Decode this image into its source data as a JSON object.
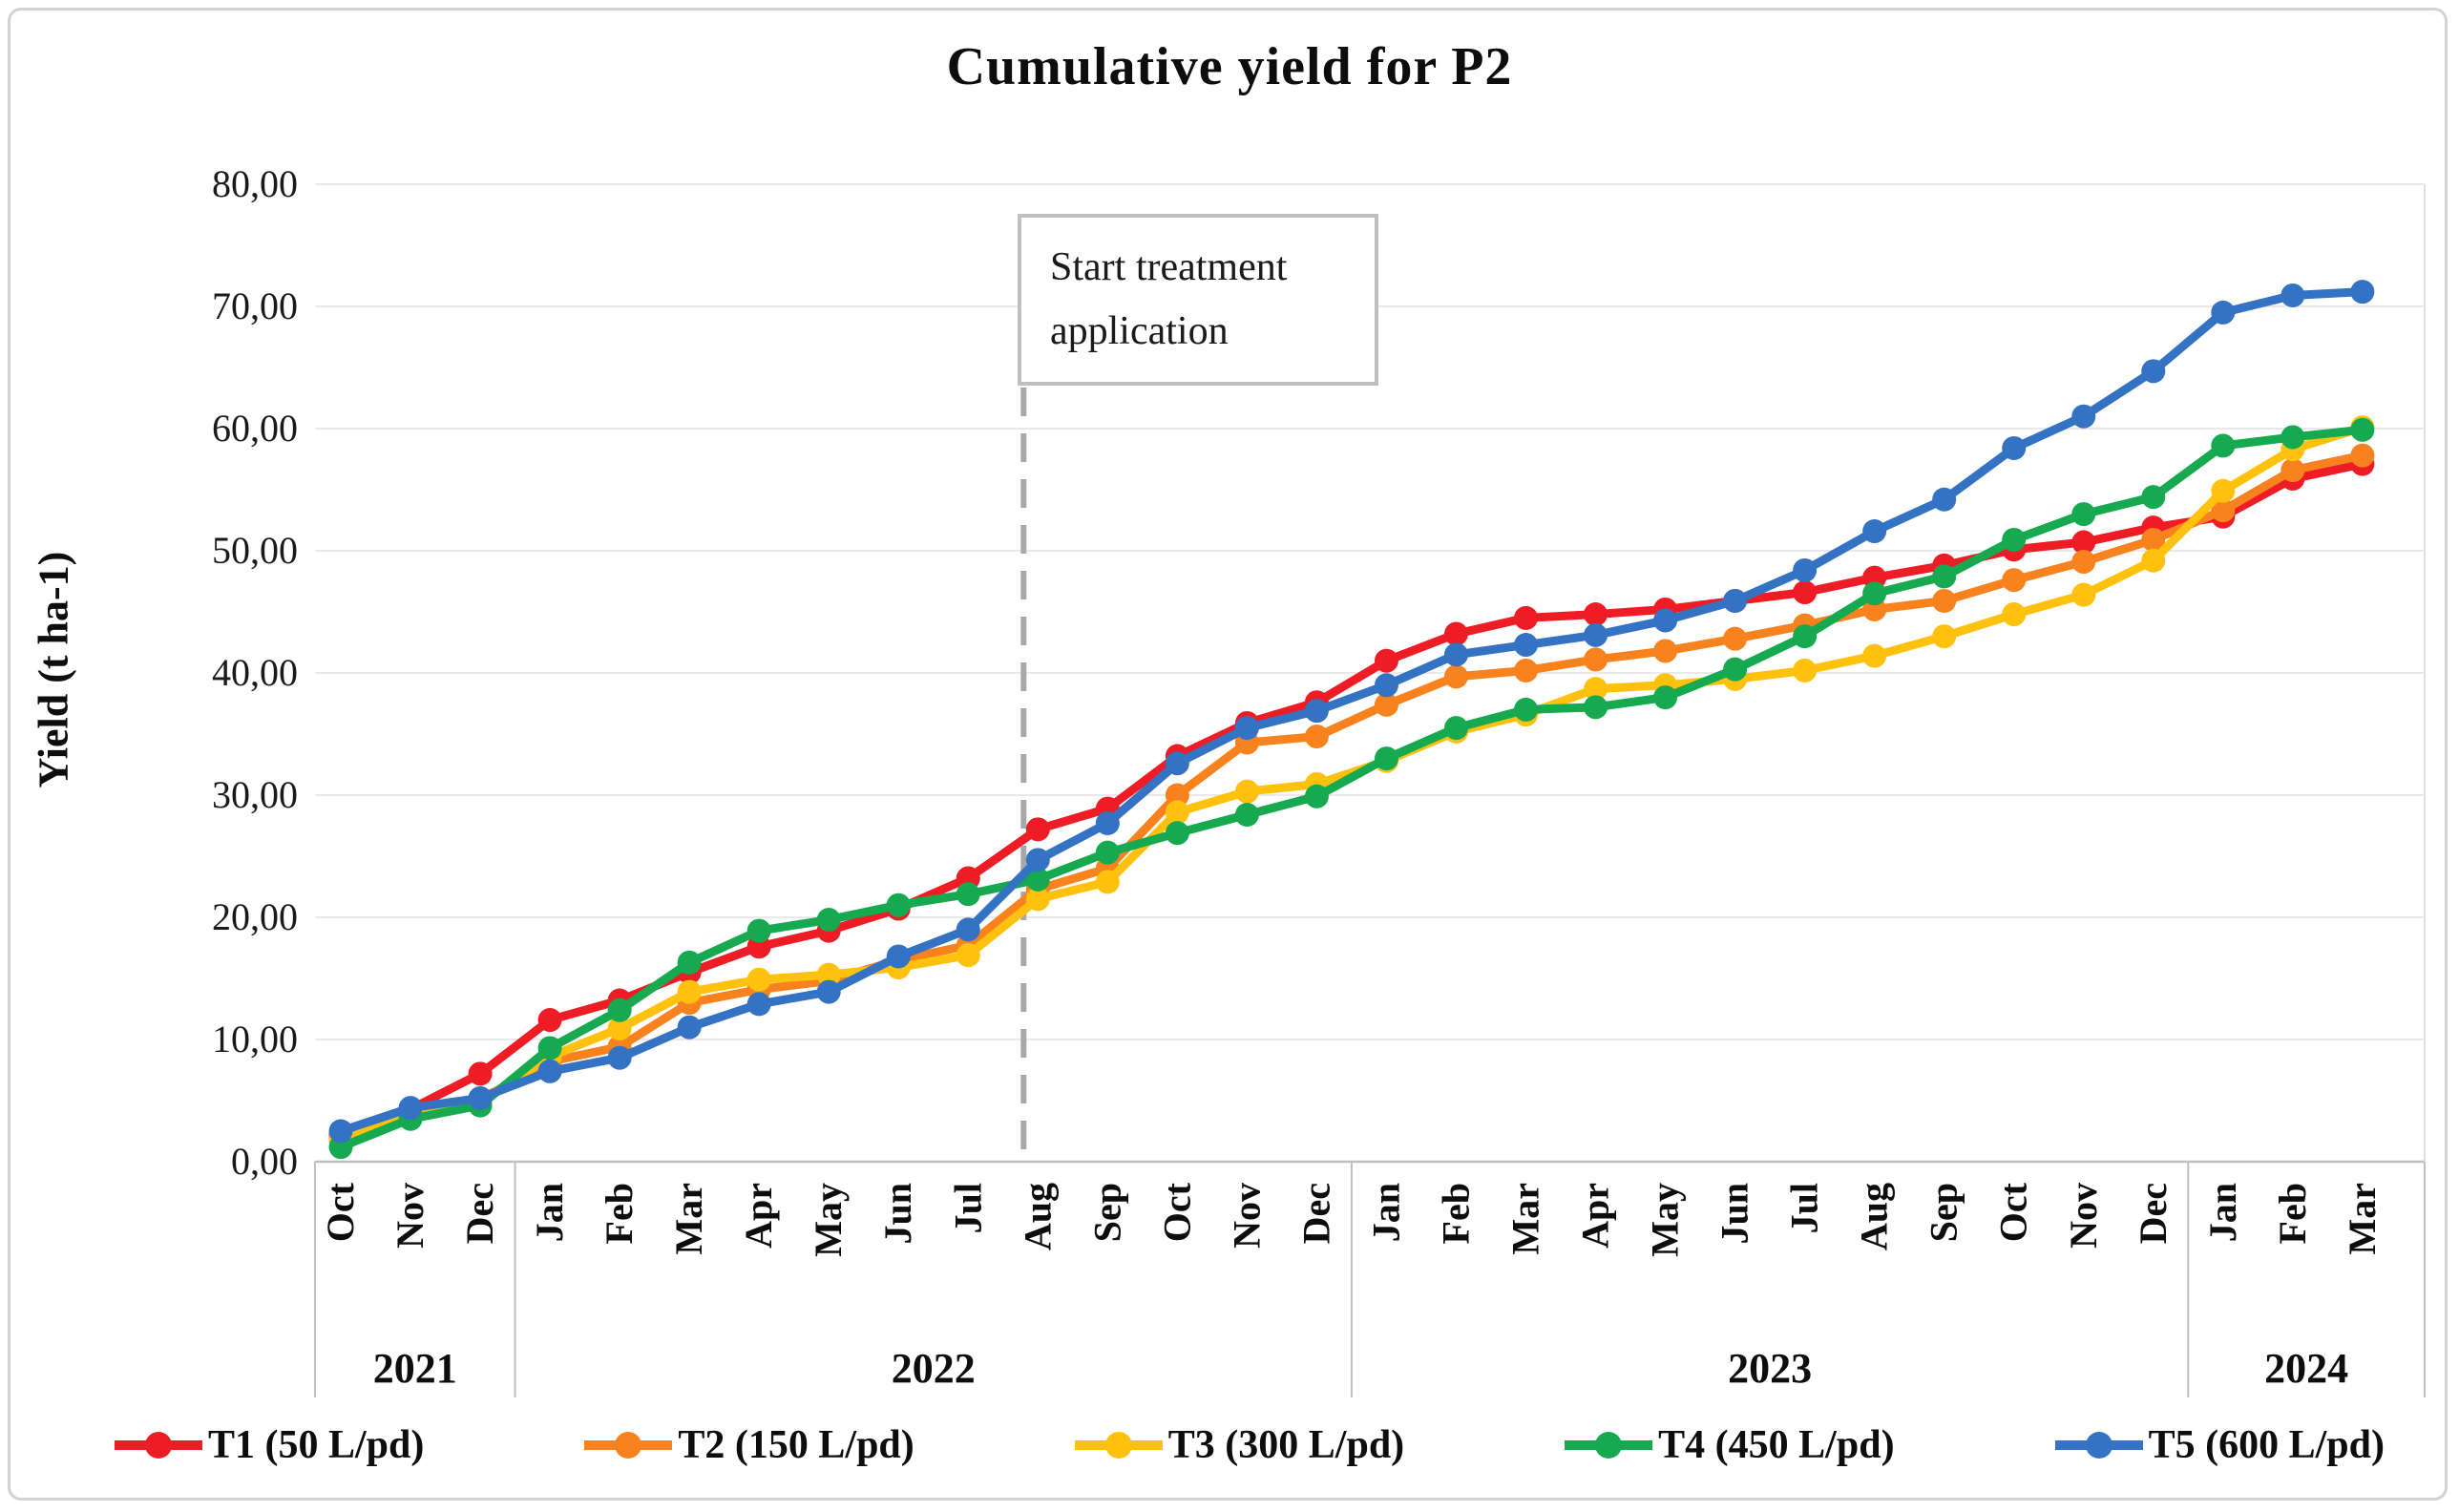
{
  "figure": {
    "title": "Cumulative yield for P2",
    "y_axis_title": "Yield (t ha-1)",
    "annotation": {
      "line1": "Start treatment",
      "line2": "application"
    }
  },
  "chart_data": {
    "type": "line",
    "title": "Cumulative yield for P2",
    "xlabel": "",
    "ylabel": "Yield (t ha-1)",
    "ylim": [
      0,
      80
    ],
    "y_tick_labels": [
      "0,00",
      "10,00",
      "20,00",
      "30,00",
      "40,00",
      "50,00",
      "60,00",
      "70,00",
      "80,00"
    ],
    "grid": true,
    "legend_position": "bottom",
    "months": [
      "Oct",
      "Nov",
      "Dec",
      "Jan",
      "Feb",
      "Mar",
      "Apr",
      "May",
      "Jun",
      "Jul",
      "Aug",
      "Sep",
      "Oct",
      "Nov",
      "Dec",
      "Jan",
      "Feb",
      "Mar",
      "Apr",
      "May",
      "Jun",
      "Jul",
      "Aug",
      "Sep",
      "Oct",
      "Nov",
      "Dec",
      "Jan",
      "Feb",
      "Mar"
    ],
    "year_groups": [
      {
        "label": "2021",
        "span": 3
      },
      {
        "label": "2022",
        "span": 12
      },
      {
        "label": "2023",
        "span": 12
      },
      {
        "label": "2024",
        "span": 3
      }
    ],
    "annotation": {
      "text": "Start treatment application",
      "at_month_index": 10
    },
    "treatment_line": {
      "month_index": 10,
      "color": "#a8a8a8",
      "style": "dashed"
    },
    "series": [
      {
        "name": "T1 (50 L/pd)",
        "color": "#ee1c25",
        "values": [
          2.2,
          4.3,
          7.2,
          11.6,
          13.2,
          15.5,
          17.6,
          18.9,
          20.7,
          23.2,
          27.2,
          28.9,
          33.2,
          35.9,
          37.6,
          41.0,
          43.2,
          44.5,
          44.8,
          45.2,
          45.9,
          46.6,
          47.8,
          48.8,
          50.1,
          50.7,
          51.9,
          52.8,
          55.9,
          57.1
        ]
      },
      {
        "name": "T2 (150 L/pd)",
        "color": "#f8821e",
        "values": [
          1.9,
          4.2,
          5.1,
          8.2,
          9.4,
          13.0,
          14.1,
          14.8,
          16.5,
          17.7,
          22.3,
          24.0,
          30.0,
          34.3,
          34.8,
          37.4,
          39.7,
          40.2,
          41.1,
          41.8,
          42.8,
          43.9,
          45.2,
          45.9,
          47.6,
          49.1,
          50.9,
          53.3,
          56.6,
          57.8
        ]
      },
      {
        "name": "T3 (300 L/pd)",
        "color": "#fec10d",
        "values": [
          1.7,
          4.0,
          4.9,
          8.6,
          10.9,
          13.9,
          14.9,
          15.3,
          15.9,
          16.9,
          21.5,
          22.9,
          28.6,
          30.3,
          30.9,
          32.8,
          35.2,
          36.6,
          38.7,
          39.0,
          39.5,
          40.2,
          41.4,
          43.0,
          44.8,
          46.4,
          49.2,
          54.9,
          58.3,
          60.1
        ]
      },
      {
        "name": "T4 (450 L/pd)",
        "color": "#17a94f",
        "values": [
          1.2,
          3.5,
          4.6,
          9.3,
          12.4,
          16.3,
          18.9,
          19.8,
          21.0,
          21.9,
          23.1,
          25.3,
          26.9,
          28.4,
          29.9,
          33.0,
          35.5,
          37.0,
          37.2,
          38.0,
          40.3,
          43.0,
          46.5,
          47.9,
          50.9,
          53.0,
          54.4,
          58.6,
          59.3,
          59.9
        ]
      },
      {
        "name": "T5 (600 L/pd)",
        "color": "#3473c3",
        "values": [
          2.5,
          4.4,
          5.2,
          7.4,
          8.5,
          11.0,
          12.9,
          13.9,
          16.8,
          19.0,
          24.7,
          27.7,
          32.6,
          35.5,
          36.9,
          39.0,
          41.5,
          42.3,
          43.1,
          44.3,
          45.9,
          48.4,
          51.6,
          54.2,
          58.4,
          61.0,
          64.7,
          69.5,
          70.9,
          71.2
        ]
      }
    ]
  }
}
